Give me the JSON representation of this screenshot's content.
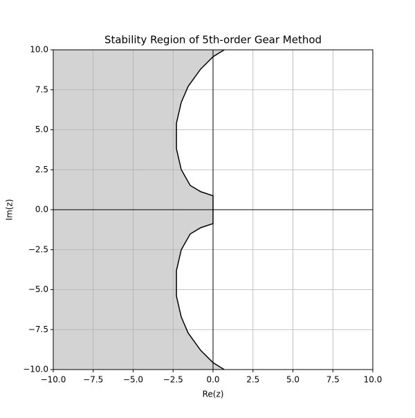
{
  "chart_data": {
    "type": "region",
    "title": "Stability Region of 5th-order Gear Method",
    "xlabel": "Re(z)",
    "ylabel": "Im(z)",
    "x": [
      0.7,
      0,
      -0.78,
      -1.56,
      -1.99,
      -2.29,
      -2.29,
      -1.99,
      -1.43,
      -0.78,
      0,
      0,
      -0.78,
      -1.43,
      -1.99,
      -2.29,
      -2.29,
      -1.99,
      -1.56,
      -0.78,
      0,
      0.7
    ],
    "values": [
      10,
      9.57,
      8.79,
      7.71,
      6.71,
      5.41,
      3.81,
      2.51,
      1.52,
      1.13,
      0.87,
      -0.87,
      -1.13,
      -1.52,
      -2.51,
      -3.81,
      -5.41,
      -6.71,
      -7.71,
      -8.79,
      -9.57,
      -10
    ],
    "fill_color": "#d3d3d3",
    "line_color": "#000000",
    "fill_side": "left",
    "xlim": [
      -10,
      10
    ],
    "ylim": [
      -10,
      10
    ],
    "xticks": [
      {
        "value": -10,
        "label": "−10.0"
      },
      {
        "value": -7.5,
        "label": "−7.5"
      },
      {
        "value": -5,
        "label": "−5.0"
      },
      {
        "value": -2.5,
        "label": "−2.5"
      },
      {
        "value": 0,
        "label": "0.0"
      },
      2.5,
      {
        "value": 5,
        "label": "5.0"
      },
      7.5,
      {
        "value": 10,
        "label": "10.0"
      }
    ],
    "yticks": [
      {
        "value": -10,
        "label": "−10.0"
      },
      {
        "value": -7.5,
        "label": "−7.5"
      },
      {
        "value": -5,
        "label": "−5.0"
      },
      {
        "value": -2.5,
        "label": "−2.5"
      },
      {
        "value": 0,
        "label": "0.0"
      },
      2.5,
      {
        "value": 5,
        "label": "5.0"
      },
      7.5,
      {
        "value": 10,
        "label": "10.0"
      }
    ],
    "grid": true,
    "zero_lines": true
  }
}
